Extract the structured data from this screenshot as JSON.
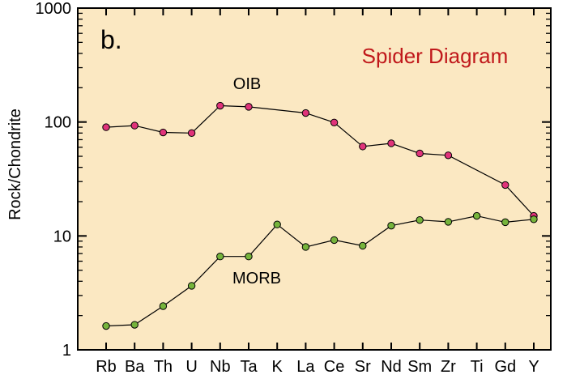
{
  "chart_data": {
    "type": "line",
    "panel_label": "b.",
    "title": "Spider Diagram",
    "xlabel": "",
    "ylabel": "Rock/Chondrite",
    "yscale": "log",
    "ylim": [
      1,
      1000
    ],
    "yticks": [
      1,
      10,
      100,
      1000
    ],
    "ytick_labels": [
      "1",
      "10",
      "100",
      "1000"
    ],
    "categories": [
      "Rb",
      "Ba",
      "Th",
      "U",
      "Nb",
      "Ta",
      "K",
      "La",
      "Ce",
      "Sr",
      "Nd",
      "Sm",
      "Zr",
      "Ti",
      "Gd",
      "Y"
    ],
    "series": [
      {
        "name": "OIB",
        "color": "#e0337a",
        "values": [
          90,
          93,
          81,
          80,
          139,
          136,
          null,
          120,
          99,
          61,
          65,
          53,
          51,
          null,
          28,
          15
        ]
      },
      {
        "name": "MORB",
        "color": "#76b43c",
        "values": [
          1.62,
          1.66,
          2.42,
          3.65,
          6.6,
          6.6,
          12.6,
          8.0,
          9.2,
          8.2,
          12.3,
          13.8,
          13.3,
          15.0,
          13.2,
          14.0
        ]
      }
    ],
    "grid": false,
    "legend": "none",
    "background_color": "#fbe8c2",
    "title_color": "#c0181b"
  }
}
